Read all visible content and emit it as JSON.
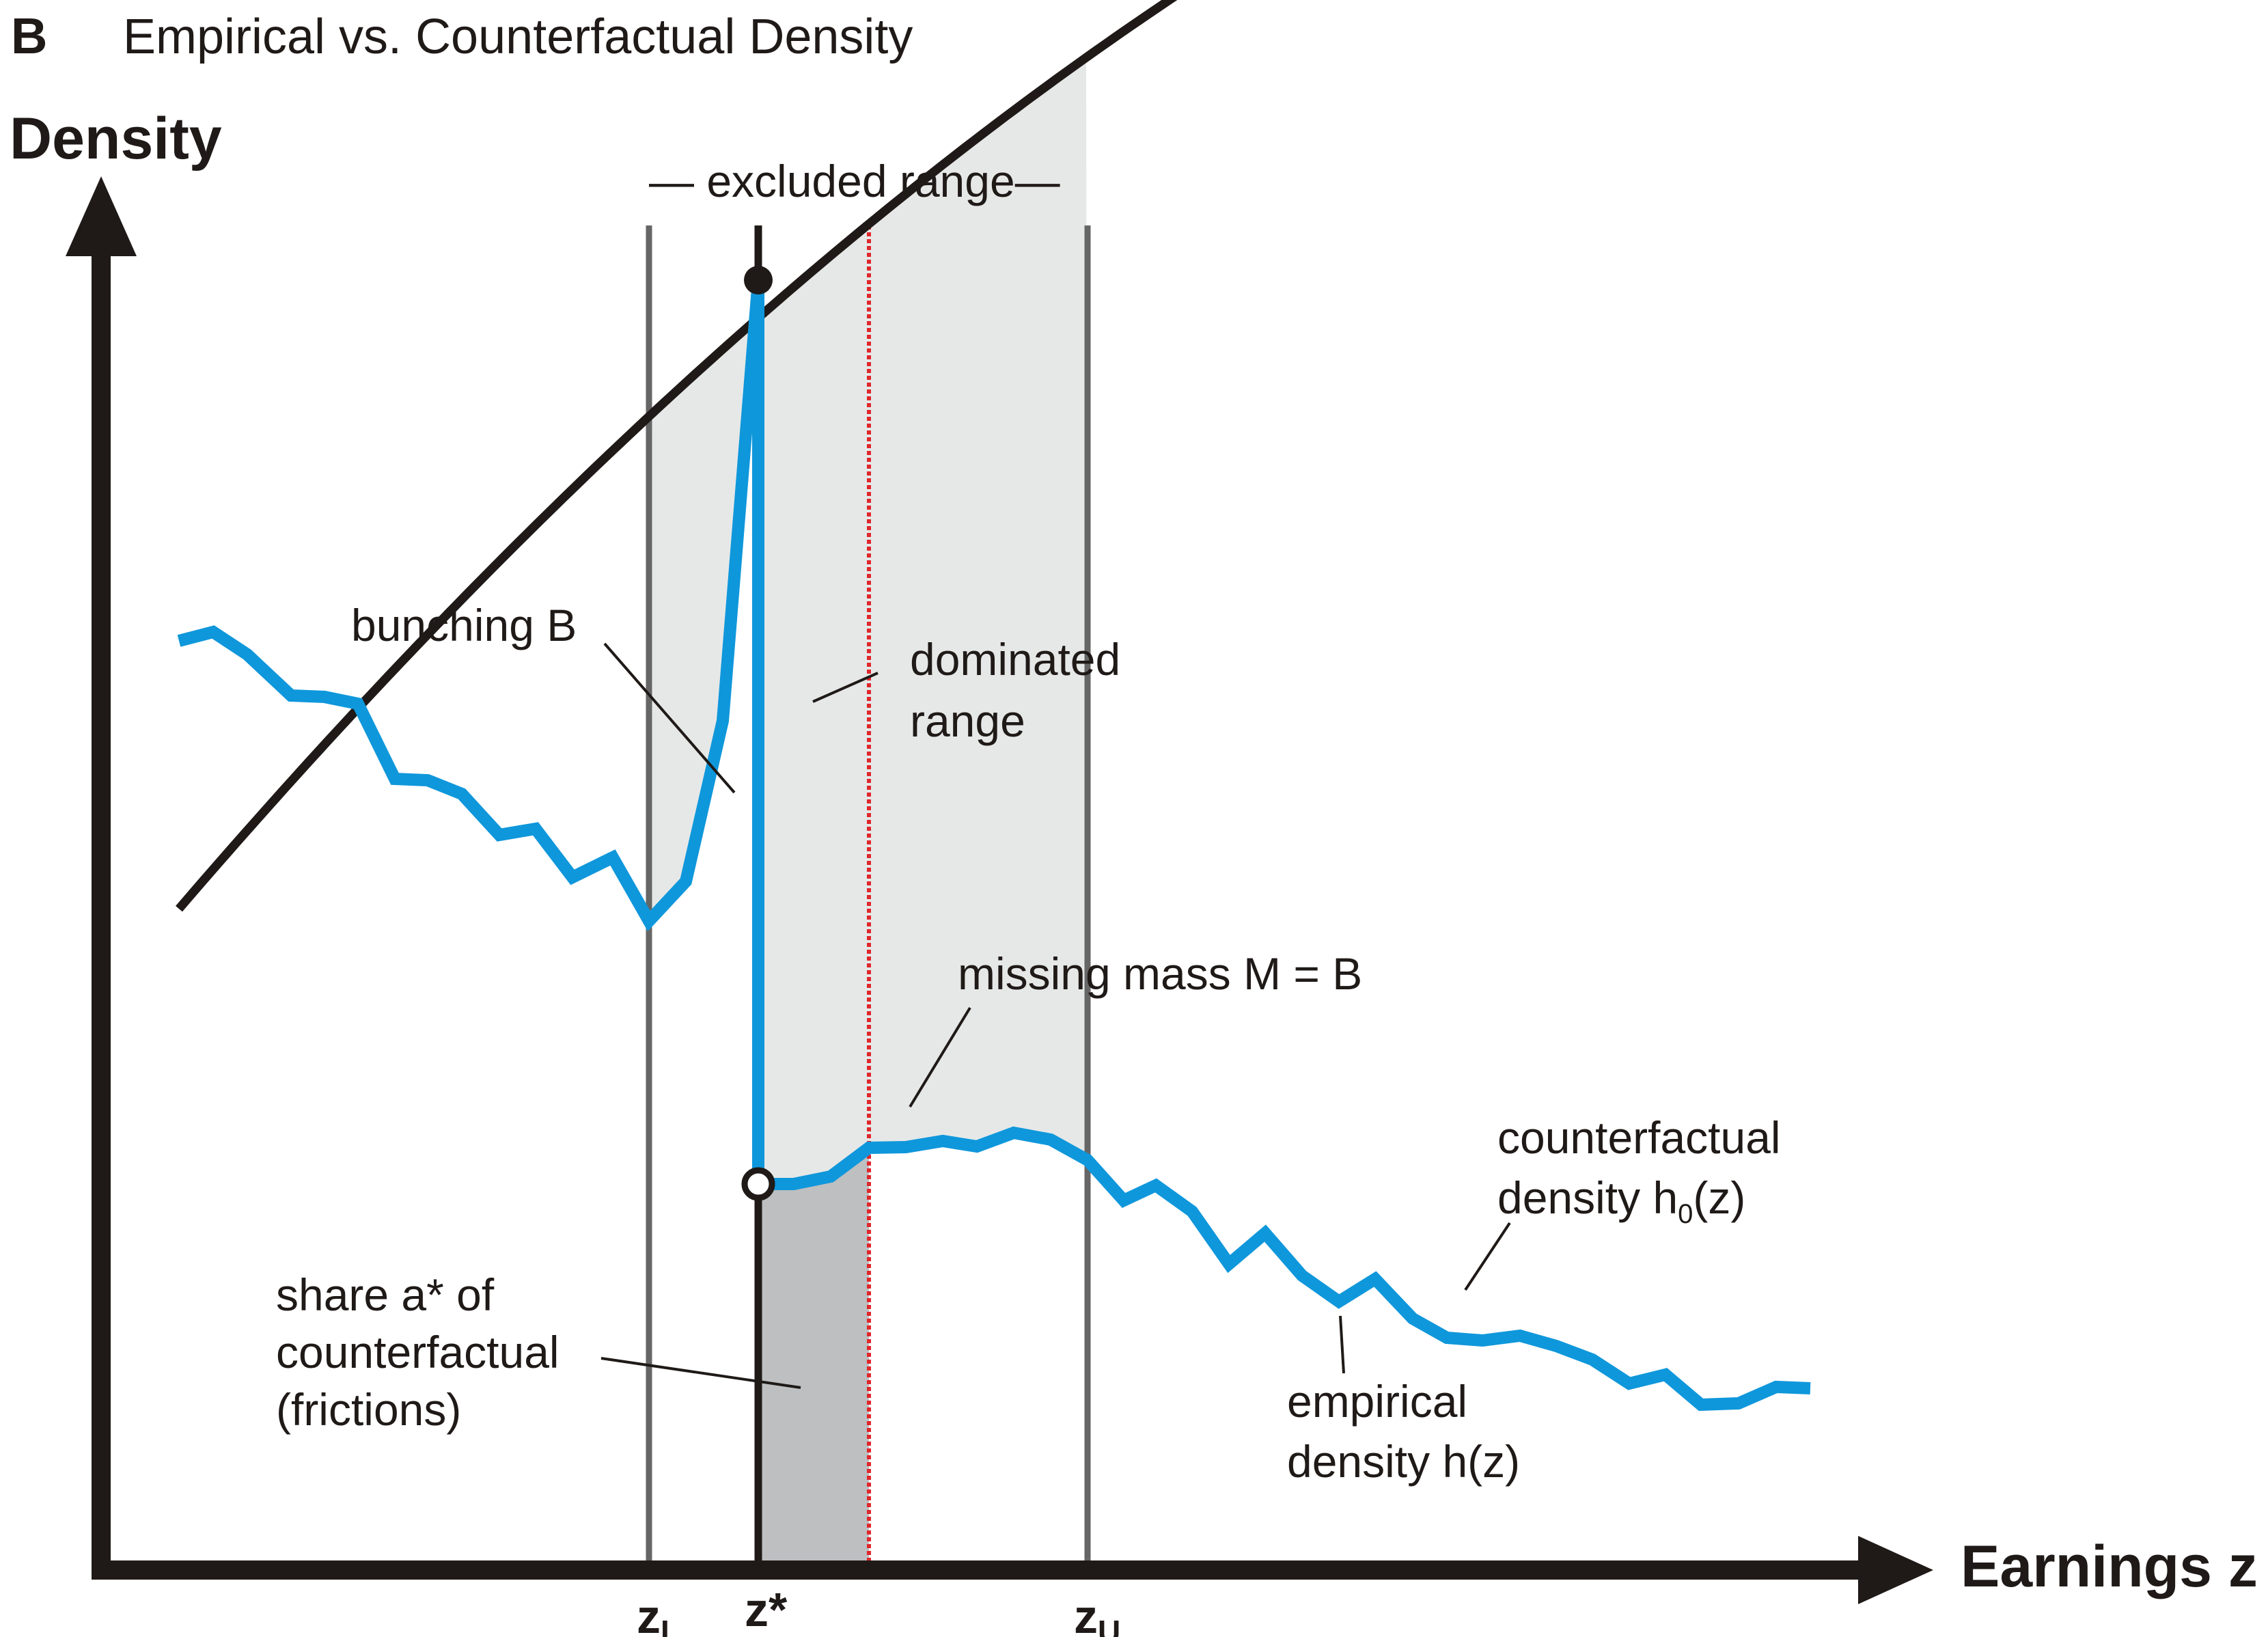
{
  "panel": {
    "letter": "B",
    "title": "Empirical vs. Counterfactual Density"
  },
  "axes": {
    "y_label": "Density",
    "x_label": "Earnings z"
  },
  "ticks": {
    "z_lower": {
      "main": "z",
      "sub": "L"
    },
    "z_star": "z*",
    "z_upper": {
      "main": "z",
      "sub": "U"
    }
  },
  "labels": {
    "excluded_range": "— excluded range—",
    "bunching": "bunching B",
    "dominated_range": [
      "dominated",
      "range"
    ],
    "missing_mass": "missing mass M = B",
    "counterfactual_density": {
      "line1": "counterfactual",
      "line2_pre": "density h",
      "line2_sub": "0",
      "line2_post": "(z)"
    },
    "share_frictions": [
      "share a* of",
      "counterfactual",
      "(frictions)"
    ],
    "empirical_density": [
      "empirical",
      "density h(z)"
    ]
  },
  "colors": {
    "empirical": "#0f97db",
    "counterfactual": "#1f1a17",
    "dominated_boundary": "#e0262b",
    "bunching_fill": "#e6e8e8",
    "friction_fill": "#bdbfc1",
    "reference_lines": "#666666"
  },
  "chart_data": {
    "type": "line",
    "series": [
      {
        "legend": "counterfactual density h0(z)"
      },
      {
        "legend": "empirical density h(z)"
      }
    ],
    "markers": [
      {
        "at": "z*",
        "style": "filled",
        "meaning": "top of bunching spike"
      },
      {
        "at": "z*",
        "style": "hollow",
        "meaning": "empirical density just above z*"
      }
    ]
  }
}
